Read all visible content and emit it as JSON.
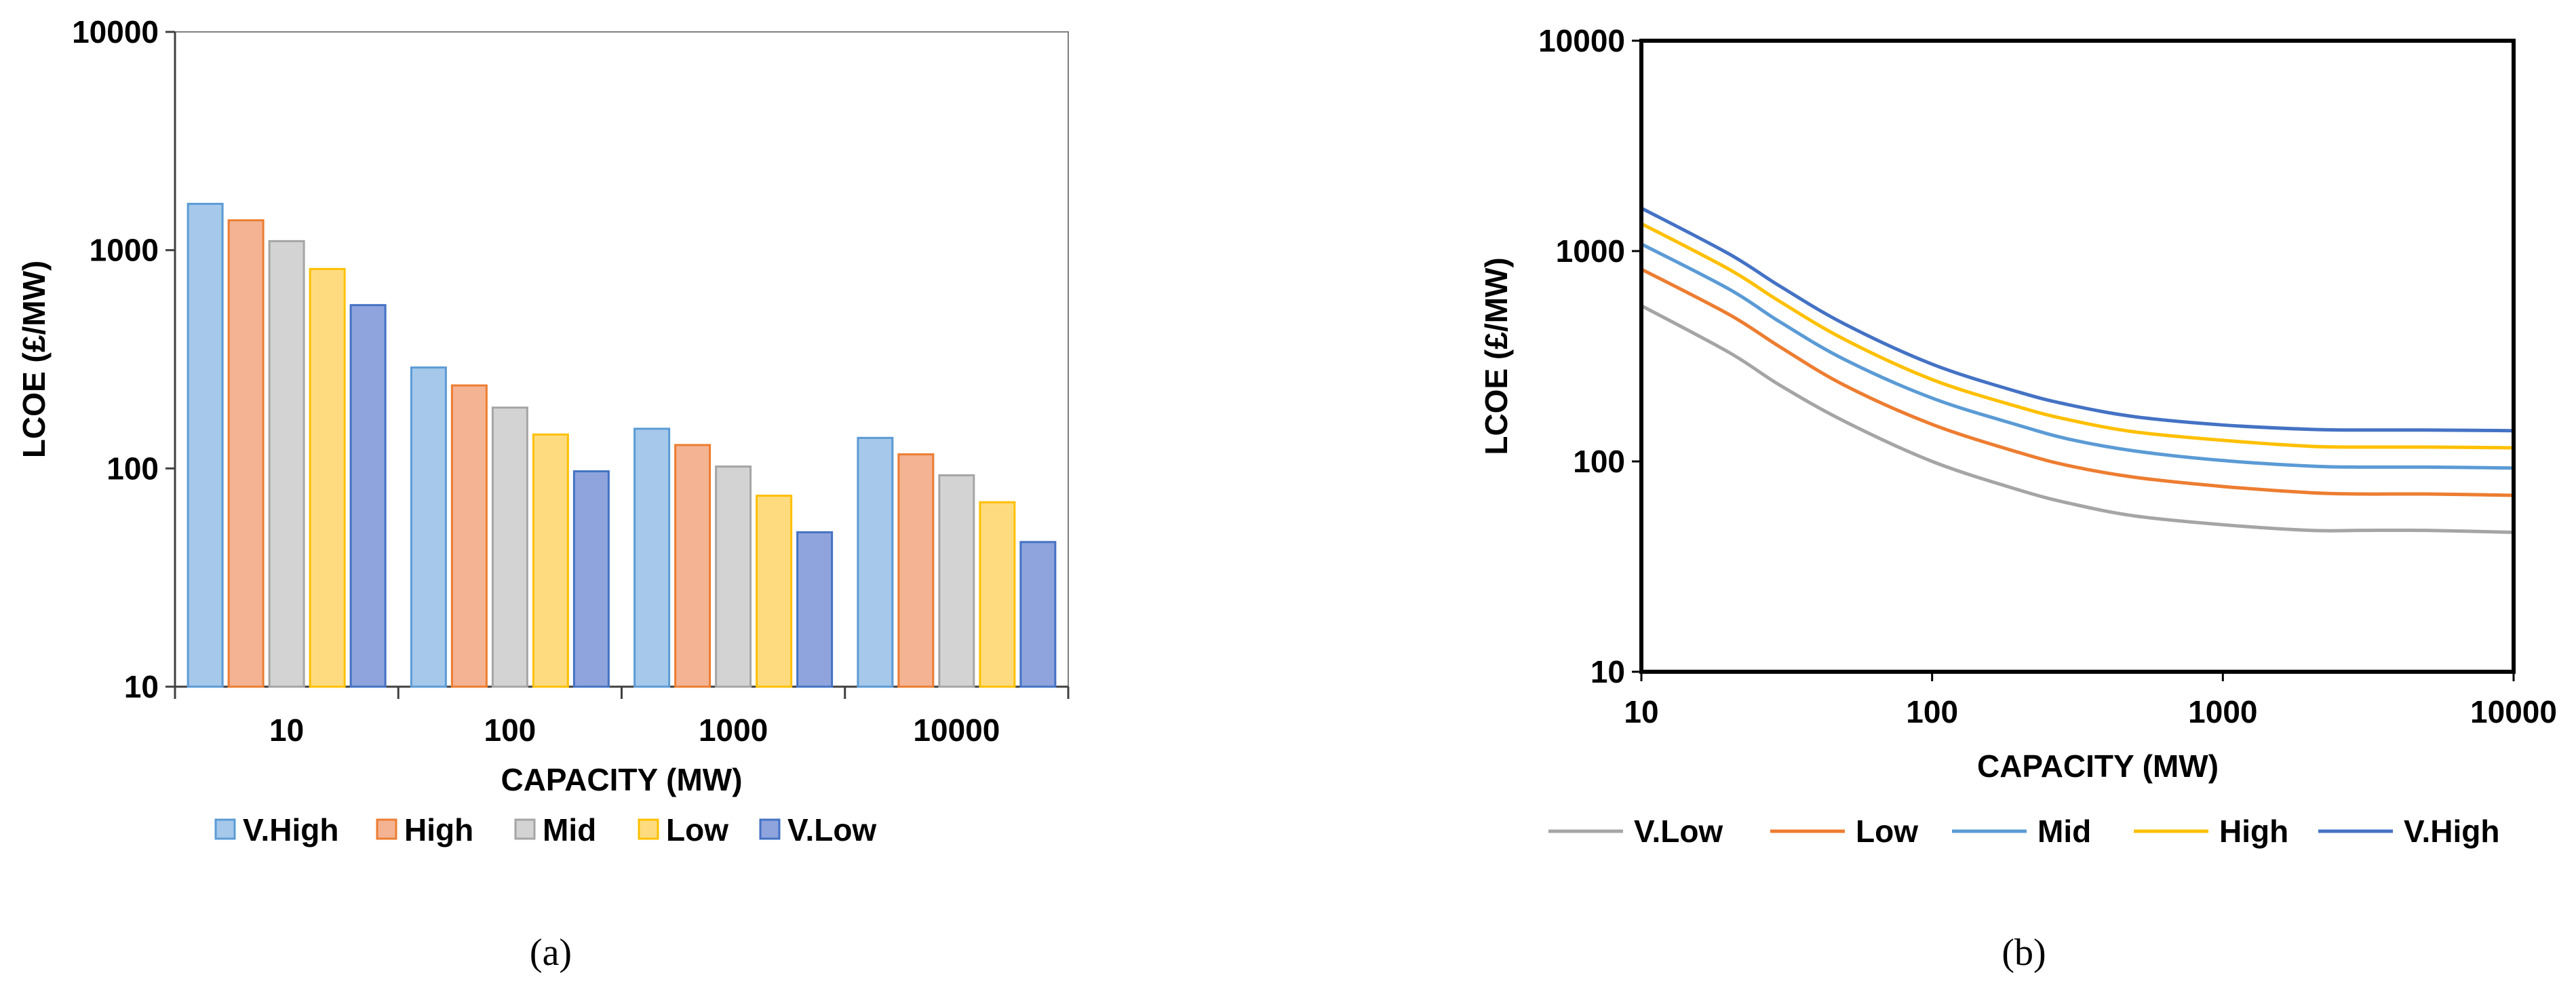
{
  "chart_data": [
    {
      "type": "bar",
      "panel": "(a)",
      "xlabel": "CAPACITY (MW)",
      "ylabel": "LCOE (£/MW)",
      "yscale": "log",
      "ylim": [
        10,
        10000
      ],
      "yticks": [
        "10",
        "100",
        "1000",
        "10000"
      ],
      "categories": [
        "10",
        "100",
        "1000",
        "10000"
      ],
      "legend_position": "bottom",
      "series": [
        {
          "name": "V.High",
          "fill": "#a6c8ea",
          "stroke": "#5b9bd5",
          "values": [
            1630,
            290,
            152,
            138
          ]
        },
        {
          "name": "High",
          "fill": "#f4b393",
          "stroke": "#ed7d31",
          "values": [
            1370,
            240,
            128,
            116
          ]
        },
        {
          "name": "Mid",
          "fill": "#d3d3d3",
          "stroke": "#a5a5a5",
          "values": [
            1100,
            190,
            102,
            93
          ]
        },
        {
          "name": "Low",
          "fill": "#ffdb80",
          "stroke": "#ffc000",
          "values": [
            820,
            143,
            75,
            70
          ]
        },
        {
          "name": "V.Low",
          "fill": "#8fa4dc",
          "stroke": "#4472c4",
          "values": [
            560,
            97,
            51,
            46
          ]
        }
      ]
    },
    {
      "type": "line",
      "panel": "(b)",
      "xlabel": "CAPACITY (MW)",
      "ylabel": "LCOE (£/MW)",
      "xscale": "log",
      "yscale": "log",
      "xlim": [
        10,
        10000
      ],
      "ylim": [
        10,
        10000
      ],
      "xticks": [
        "10",
        "100",
        "1000",
        "10000"
      ],
      "yticks": [
        "10",
        "100",
        "1000",
        "10000"
      ],
      "legend_position": "bottom",
      "x": [
        10,
        20,
        30,
        50,
        100,
        200,
        300,
        500,
        1000,
        2000,
        3000,
        5000,
        10000
      ],
      "series": [
        {
          "name": "V.Low",
          "color": "#a5a5a5",
          "values": [
            550,
            330,
            230,
            155,
            100,
            73,
            63,
            55,
            50,
            47,
            47,
            47,
            46
          ]
        },
        {
          "name": "Low",
          "color": "#ed7d31",
          "values": [
            820,
            500,
            350,
            230,
            150,
            110,
            95,
            84,
            76,
            71,
            70,
            70,
            69
          ]
        },
        {
          "name": "Mid",
          "color": "#5b9bd5",
          "values": [
            1080,
            660,
            460,
            305,
            200,
            148,
            127,
            112,
            101,
            95,
            94,
            94,
            93
          ]
        },
        {
          "name": "High",
          "color": "#ffc000",
          "values": [
            1350,
            820,
            575,
            380,
            245,
            181,
            157,
            138,
            126,
            118,
            117,
            117,
            116
          ]
        },
        {
          "name": "V.High",
          "color": "#4472c4",
          "values": [
            1600,
            970,
            680,
            450,
            290,
            213,
            185,
            163,
            149,
            142,
            141,
            141,
            140
          ]
        }
      ]
    }
  ]
}
